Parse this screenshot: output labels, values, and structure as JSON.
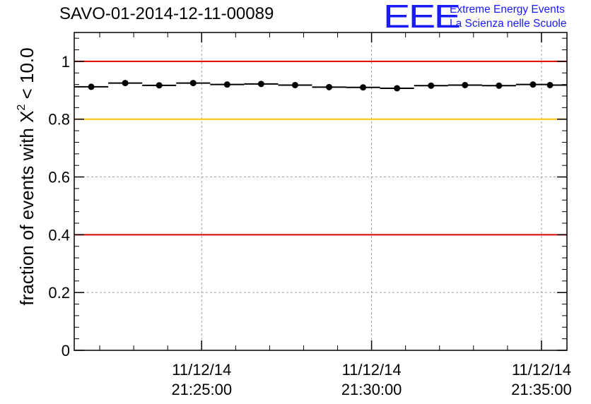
{
  "chart_data": {
    "type": "scatter",
    "title": "SAVO-01-2014-12-11-00089",
    "ylabel_prefix": "fraction of events with X",
    "ylabel_sup": "2",
    "ylabel_suffix": " < 10.0",
    "xlabel": "",
    "ylim": [
      0,
      1.1
    ],
    "yticks": [
      0,
      0.2,
      0.4,
      0.6,
      0.8,
      1
    ],
    "ytick_labels": [
      "0",
      "0.2",
      "0.4",
      "0.6",
      "0.8",
      "1"
    ],
    "xlim_minutes": [
      -8.75,
      5.75
    ],
    "xticks_minutes": [
      -5,
      0,
      5
    ],
    "xtick_labels": [
      {
        "date": "11/12/14",
        "time": "21:25:00"
      },
      {
        "date": "11/12/14",
        "time": "21:30:00"
      },
      {
        "date": "11/12/14",
        "time": "21:35:00"
      }
    ],
    "minor_tick_step_minutes": 1,
    "grid": true,
    "reference_lines": [
      {
        "name": "upper-red",
        "y": 1.0,
        "color": "#e00000"
      },
      {
        "name": "yellow",
        "y": 0.8,
        "color": "#ffc000"
      },
      {
        "name": "lower-red",
        "y": 0.4,
        "color": "#e00000"
      }
    ],
    "series": [
      {
        "name": "fraction",
        "bin_width_minutes": 1,
        "x_minutes": [
          -8.25,
          -7.25,
          -6.25,
          -5.25,
          -4.25,
          -3.25,
          -2.25,
          -1.25,
          -0.25,
          0.75,
          1.75,
          2.75,
          3.75,
          4.75,
          5.75
        ],
        "values": [
          0.912,
          0.925,
          0.917,
          0.925,
          0.92,
          0.922,
          0.918,
          0.911,
          0.91,
          0.907,
          0.916,
          0.918,
          0.916,
          0.92,
          0.918
        ]
      }
    ]
  },
  "logo": {
    "mark": "EEE",
    "line1": "Extreme Energy Events",
    "line2": "La Scienza nelle Scuole"
  },
  "colors": {
    "logo": "#1a1aff",
    "grid": "#a0a0a0",
    "marker": "#000000"
  }
}
